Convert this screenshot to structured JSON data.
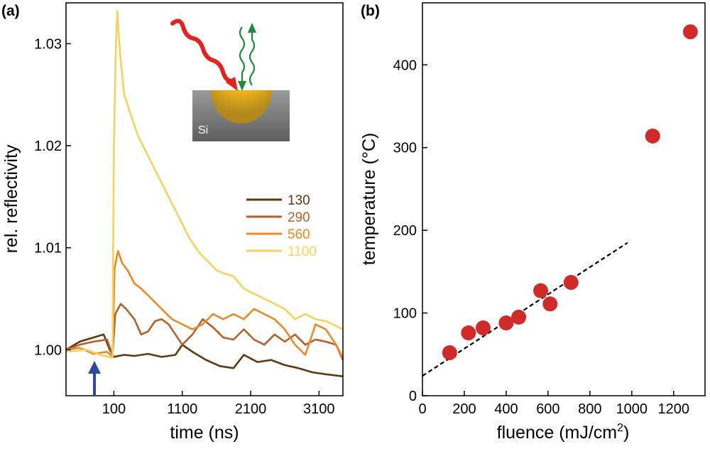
{
  "chart_data": [
    {
      "panel_label": "(a)",
      "type": "line",
      "xlabel": "time (ns)",
      "ylabel": "rel. reflectivity",
      "xlim": [
        -600,
        3450
      ],
      "ylim": [
        0.9955,
        1.034
      ],
      "xticks": [
        100,
        1100,
        2100,
        3100
      ],
      "yticks": [
        1.0,
        1.01,
        1.02,
        1.03
      ],
      "ytick_labels": [
        "1.00",
        "1.01",
        "1.02",
        "1.03"
      ],
      "grid": false,
      "legend_position": "center-right",
      "pump_arrow_at_x": 100,
      "inset": {
        "label": "Si"
      },
      "series": [
        {
          "name": "130",
          "color": "#5a3a10",
          "points": [
            [
              -600,
              1.0
            ],
            [
              -400,
              1.0008
            ],
            [
              -200,
              1.0012
            ],
            [
              -50,
              1.0015
            ],
            [
              40,
              1.0
            ],
            [
              100,
              0.9993
            ],
            [
              250,
              0.9995
            ],
            [
              400,
              0.9994
            ],
            [
              600,
              0.9996
            ],
            [
              800,
              0.9993
            ],
            [
              1000,
              0.9995
            ],
            [
              1100,
              1.0005
            ],
            [
              1250,
              0.9998
            ],
            [
              1450,
              0.999
            ],
            [
              1650,
              0.9984
            ],
            [
              1850,
              0.9982
            ],
            [
              2000,
              0.9995
            ],
            [
              2200,
              0.9988
            ],
            [
              2400,
              0.999
            ],
            [
              2600,
              0.9985
            ],
            [
              2800,
              0.9982
            ],
            [
              3000,
              0.9978
            ],
            [
              3200,
              0.9976
            ],
            [
              3450,
              0.9974
            ]
          ]
        },
        {
          "name": "290",
          "color": "#b5602a",
          "points": [
            [
              -600,
              1.0
            ],
            [
              -400,
              1.0005
            ],
            [
              -200,
              1.0008
            ],
            [
              0,
              1.001
            ],
            [
              80,
              0.9995
            ],
            [
              120,
              1.0035
            ],
            [
              200,
              1.0045
            ],
            [
              280,
              1.004
            ],
            [
              400,
              1.003
            ],
            [
              500,
              1.0015
            ],
            [
              600,
              1.0018
            ],
            [
              700,
              1.0028
            ],
            [
              800,
              1.003
            ],
            [
              900,
              1.0025
            ],
            [
              1000,
              1.0015
            ],
            [
              1100,
              1.0005
            ],
            [
              1250,
              1.0015
            ],
            [
              1400,
              1.003
            ],
            [
              1550,
              1.0022
            ],
            [
              1700,
              1.0012
            ],
            [
              1850,
              1.001
            ],
            [
              2000,
              1.002
            ],
            [
              2150,
              1.001
            ],
            [
              2300,
              1.0005
            ],
            [
              2450,
              1.0015
            ],
            [
              2600,
              1.0008
            ],
            [
              2750,
              1.0015
            ],
            [
              2900,
              1.0005
            ],
            [
              3050,
              1.001
            ],
            [
              3200,
              1.0008
            ],
            [
              3350,
              1.0005
            ],
            [
              3450,
              0.999
            ]
          ]
        },
        {
          "name": "560",
          "color": "#e8892a",
          "points": [
            [
              -600,
              1.0
            ],
            [
              -400,
              1.0002
            ],
            [
              -200,
              0.9996
            ],
            [
              0,
              0.9998
            ],
            [
              80,
              0.9993
            ],
            [
              110,
              1.008
            ],
            [
              160,
              1.0097
            ],
            [
              220,
              1.0085
            ],
            [
              300,
              1.0078
            ],
            [
              400,
              1.0065
            ],
            [
              500,
              1.006
            ],
            [
              650,
              1.005
            ],
            [
              800,
              1.004
            ],
            [
              950,
              1.003
            ],
            [
              1100,
              1.0025
            ],
            [
              1250,
              1.002
            ],
            [
              1400,
              1.0025
            ],
            [
              1550,
              1.0035
            ],
            [
              1700,
              1.003
            ],
            [
              1850,
              1.0035
            ],
            [
              2000,
              1.003
            ],
            [
              2150,
              1.004
            ],
            [
              2300,
              1.0035
            ],
            [
              2450,
              1.003
            ],
            [
              2600,
              1.002
            ],
            [
              2750,
              1.0005
            ],
            [
              2900,
              0.9995
            ],
            [
              3050,
              1.0025
            ],
            [
              3200,
              1.002
            ],
            [
              3350,
              1.0005
            ],
            [
              3450,
              0.9992
            ]
          ]
        },
        {
          "name": "1100",
          "color": "#f3d263",
          "points": [
            [
              -600,
              0.9998
            ],
            [
              -300,
              1.0
            ],
            [
              -100,
              0.9995
            ],
            [
              80,
              0.9992
            ],
            [
              100,
              1.02
            ],
            [
              130,
              1.03
            ],
            [
              150,
              1.0332
            ],
            [
              190,
              1.029
            ],
            [
              250,
              1.025
            ],
            [
              350,
              1.023
            ],
            [
              450,
              1.021
            ],
            [
              600,
              1.019
            ],
            [
              750,
              1.017
            ],
            [
              900,
              1.015
            ],
            [
              1050,
              1.013
            ],
            [
              1200,
              1.011
            ],
            [
              1350,
              1.0095
            ],
            [
              1500,
              1.0085
            ],
            [
              1600,
              1.0078
            ],
            [
              1700,
              1.0075
            ],
            [
              1850,
              1.0072
            ],
            [
              2000,
              1.006
            ],
            [
              2150,
              1.0055
            ],
            [
              2300,
              1.005
            ],
            [
              2450,
              1.0045
            ],
            [
              2600,
              1.004
            ],
            [
              2750,
              1.003
            ],
            [
              2900,
              1.0035
            ],
            [
              3050,
              1.003
            ],
            [
              3200,
              1.0028
            ],
            [
              3300,
              1.0025
            ],
            [
              3450,
              1.002
            ]
          ]
        }
      ]
    },
    {
      "panel_label": "(b)",
      "type": "scatter",
      "xlabel": "fluence (mJ/cm",
      "xlabel_superscript": "2",
      "xlabel_tail": ")",
      "ylabel": "temperature (°C)",
      "xlim": [
        0,
        1350
      ],
      "ylim": [
        0,
        475
      ],
      "xticks": [
        0,
        200,
        400,
        600,
        800,
        1000,
        1200
      ],
      "yticks": [
        0,
        100,
        200,
        300,
        400
      ],
      "grid": false,
      "point_color": "#d02b2b",
      "points": [
        [
          130,
          52
        ],
        [
          220,
          76
        ],
        [
          290,
          82
        ],
        [
          400,
          88
        ],
        [
          460,
          95
        ],
        [
          565,
          127
        ],
        [
          610,
          111
        ],
        [
          710,
          137
        ],
        [
          1100,
          314
        ],
        [
          1280,
          440
        ]
      ],
      "fit_line": {
        "style": "dashed",
        "x": [
          0,
          980
        ],
        "y": [
          24,
          185
        ]
      }
    }
  ]
}
